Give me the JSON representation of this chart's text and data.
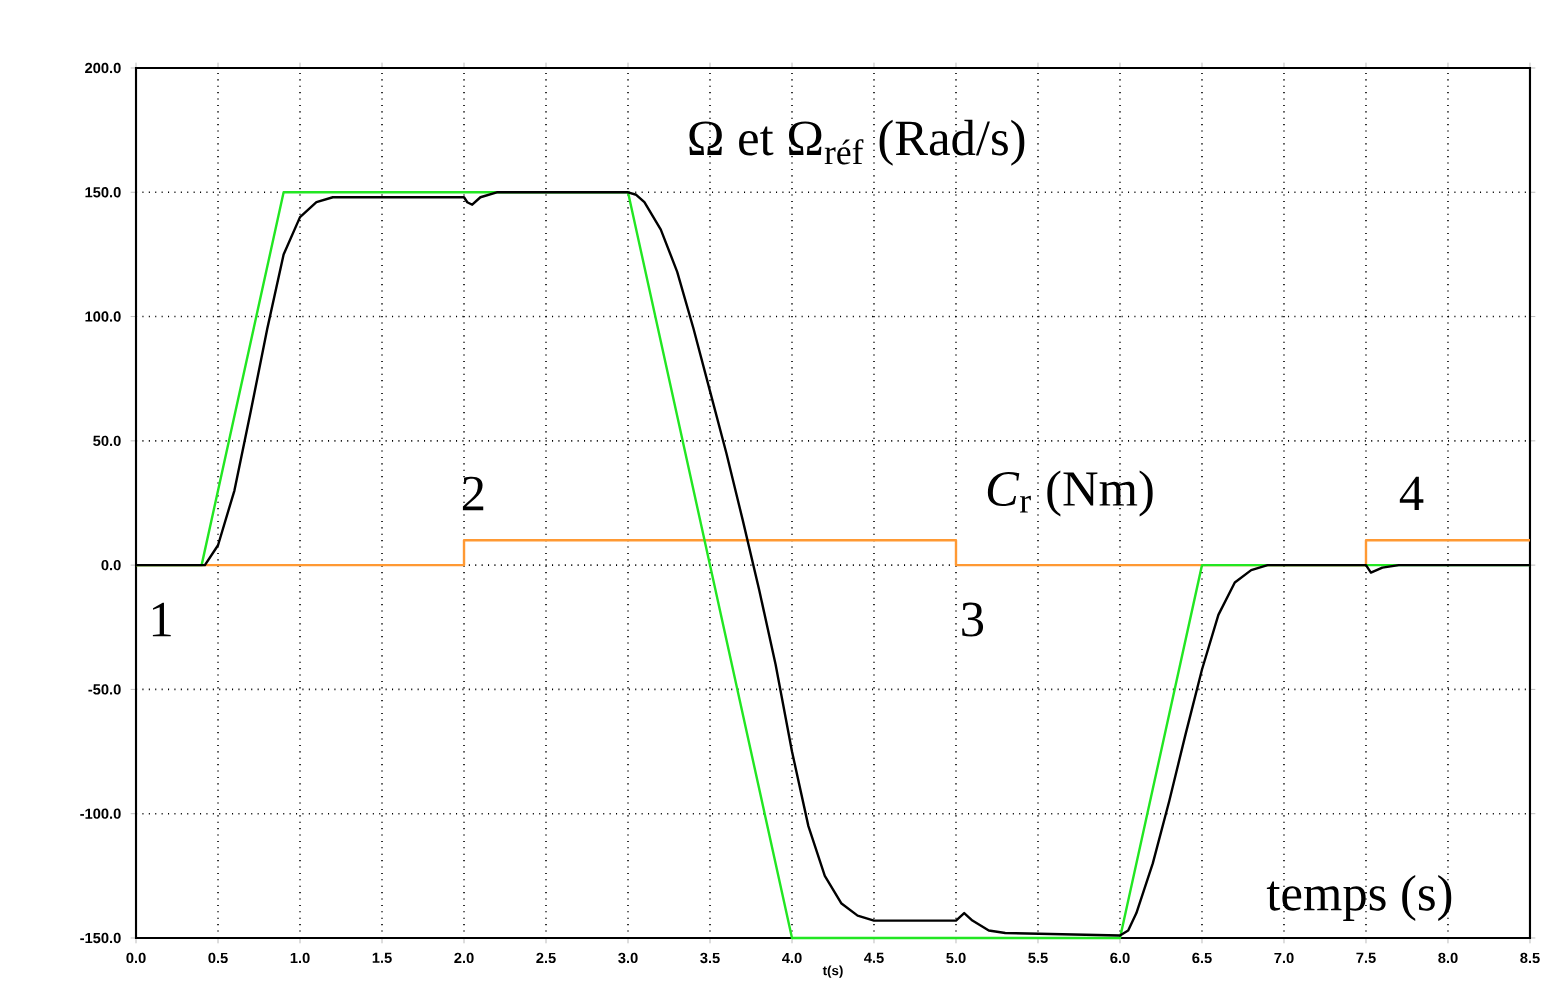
{
  "chart_data": {
    "type": "line",
    "xlabel": "t(s)",
    "xlim": [
      0,
      8.5
    ],
    "ylim": [
      -150,
      200
    ],
    "xticks": [
      {
        "value": 0,
        "label": "0.0"
      },
      {
        "value": 0.5,
        "label": "0.5"
      },
      {
        "value": 1,
        "label": "1.0"
      },
      {
        "value": 1.5,
        "label": "1.5"
      },
      {
        "value": 2,
        "label": "2.0"
      },
      {
        "value": 2.5,
        "label": "2.5"
      },
      {
        "value": 3,
        "label": "3.0"
      },
      {
        "value": 3.5,
        "label": "3.5"
      },
      {
        "value": 4,
        "label": "4.0"
      },
      {
        "value": 4.5,
        "label": "4.5"
      },
      {
        "value": 5,
        "label": "5.0"
      },
      {
        "value": 5.5,
        "label": "5.5"
      },
      {
        "value": 6,
        "label": "6.0"
      },
      {
        "value": 6.5,
        "label": "6.5"
      },
      {
        "value": 7,
        "label": "7.0"
      },
      {
        "value": 7.5,
        "label": "7.5"
      },
      {
        "value": 8,
        "label": "8.0"
      },
      {
        "value": 8.5,
        "label": "8.5"
      }
    ],
    "yticks": [
      {
        "value": -150,
        "label": "-150.0"
      },
      {
        "value": -100,
        "label": "-100.0"
      },
      {
        "value": -50,
        "label": "-50.0"
      },
      {
        "value": 0,
        "label": "0.0"
      },
      {
        "value": 50,
        "label": "50.0"
      },
      {
        "value": 100,
        "label": "100.0"
      },
      {
        "value": 150,
        "label": "150.0"
      },
      {
        "value": 200,
        "label": "200.0"
      }
    ],
    "grid": true,
    "marker": "none",
    "line_style": "solid",
    "series": [
      {
        "color": "#ff9933",
        "x": [
          0,
          2,
          2,
          5,
          5,
          7.5,
          7.5,
          8.5
        ],
        "values": [
          0,
          0,
          10,
          10,
          0,
          0,
          10,
          10
        ]
      },
      {
        "color": "#22e622",
        "x": [
          0,
          0.4,
          0.9,
          3.0,
          4.0,
          6.0,
          6.5,
          8.5
        ],
        "values": [
          0,
          0,
          150,
          150,
          -150,
          -150,
          0,
          0
        ]
      },
      {
        "color": "#000000",
        "x": [
          0,
          0.42,
          0.5,
          0.6,
          0.7,
          0.8,
          0.9,
          1.0,
          1.1,
          1.2,
          1.5,
          2.0,
          2.02,
          2.05,
          2.1,
          2.2,
          3.0,
          3.05,
          3.1,
          3.2,
          3.3,
          3.4,
          3.5,
          3.6,
          3.7,
          3.8,
          3.9,
          4.0,
          4.1,
          4.2,
          4.3,
          4.4,
          4.5,
          5.0,
          5.05,
          5.1,
          5.2,
          5.3,
          6.0,
          6.05,
          6.1,
          6.2,
          6.3,
          6.4,
          6.5,
          6.6,
          6.7,
          6.8,
          6.9,
          7.5,
          7.53,
          7.6,
          7.7,
          8.5
        ],
        "values": [
          0,
          0,
          8,
          30,
          62,
          95,
          125,
          140,
          146,
          148,
          148,
          148,
          146,
          145,
          148,
          150,
          150,
          149,
          146,
          135,
          118,
          95,
          70,
          45,
          18,
          -10,
          -40,
          -75,
          -105,
          -125,
          -136,
          -141,
          -143,
          -143,
          -140,
          -143,
          -147,
          -148,
          -149,
          -147,
          -140,
          -120,
          -95,
          -68,
          -42,
          -20,
          -7,
          -2,
          0,
          0,
          -3,
          -1,
          0,
          0
        ]
      }
    ],
    "annotations": [
      "Ω et Ω$_{réf}$ (Rad/s)",
      "1",
      "2",
      "*C*$_{r}$ (Nm)",
      "3",
      "4",
      "temps (s)"
    ]
  }
}
